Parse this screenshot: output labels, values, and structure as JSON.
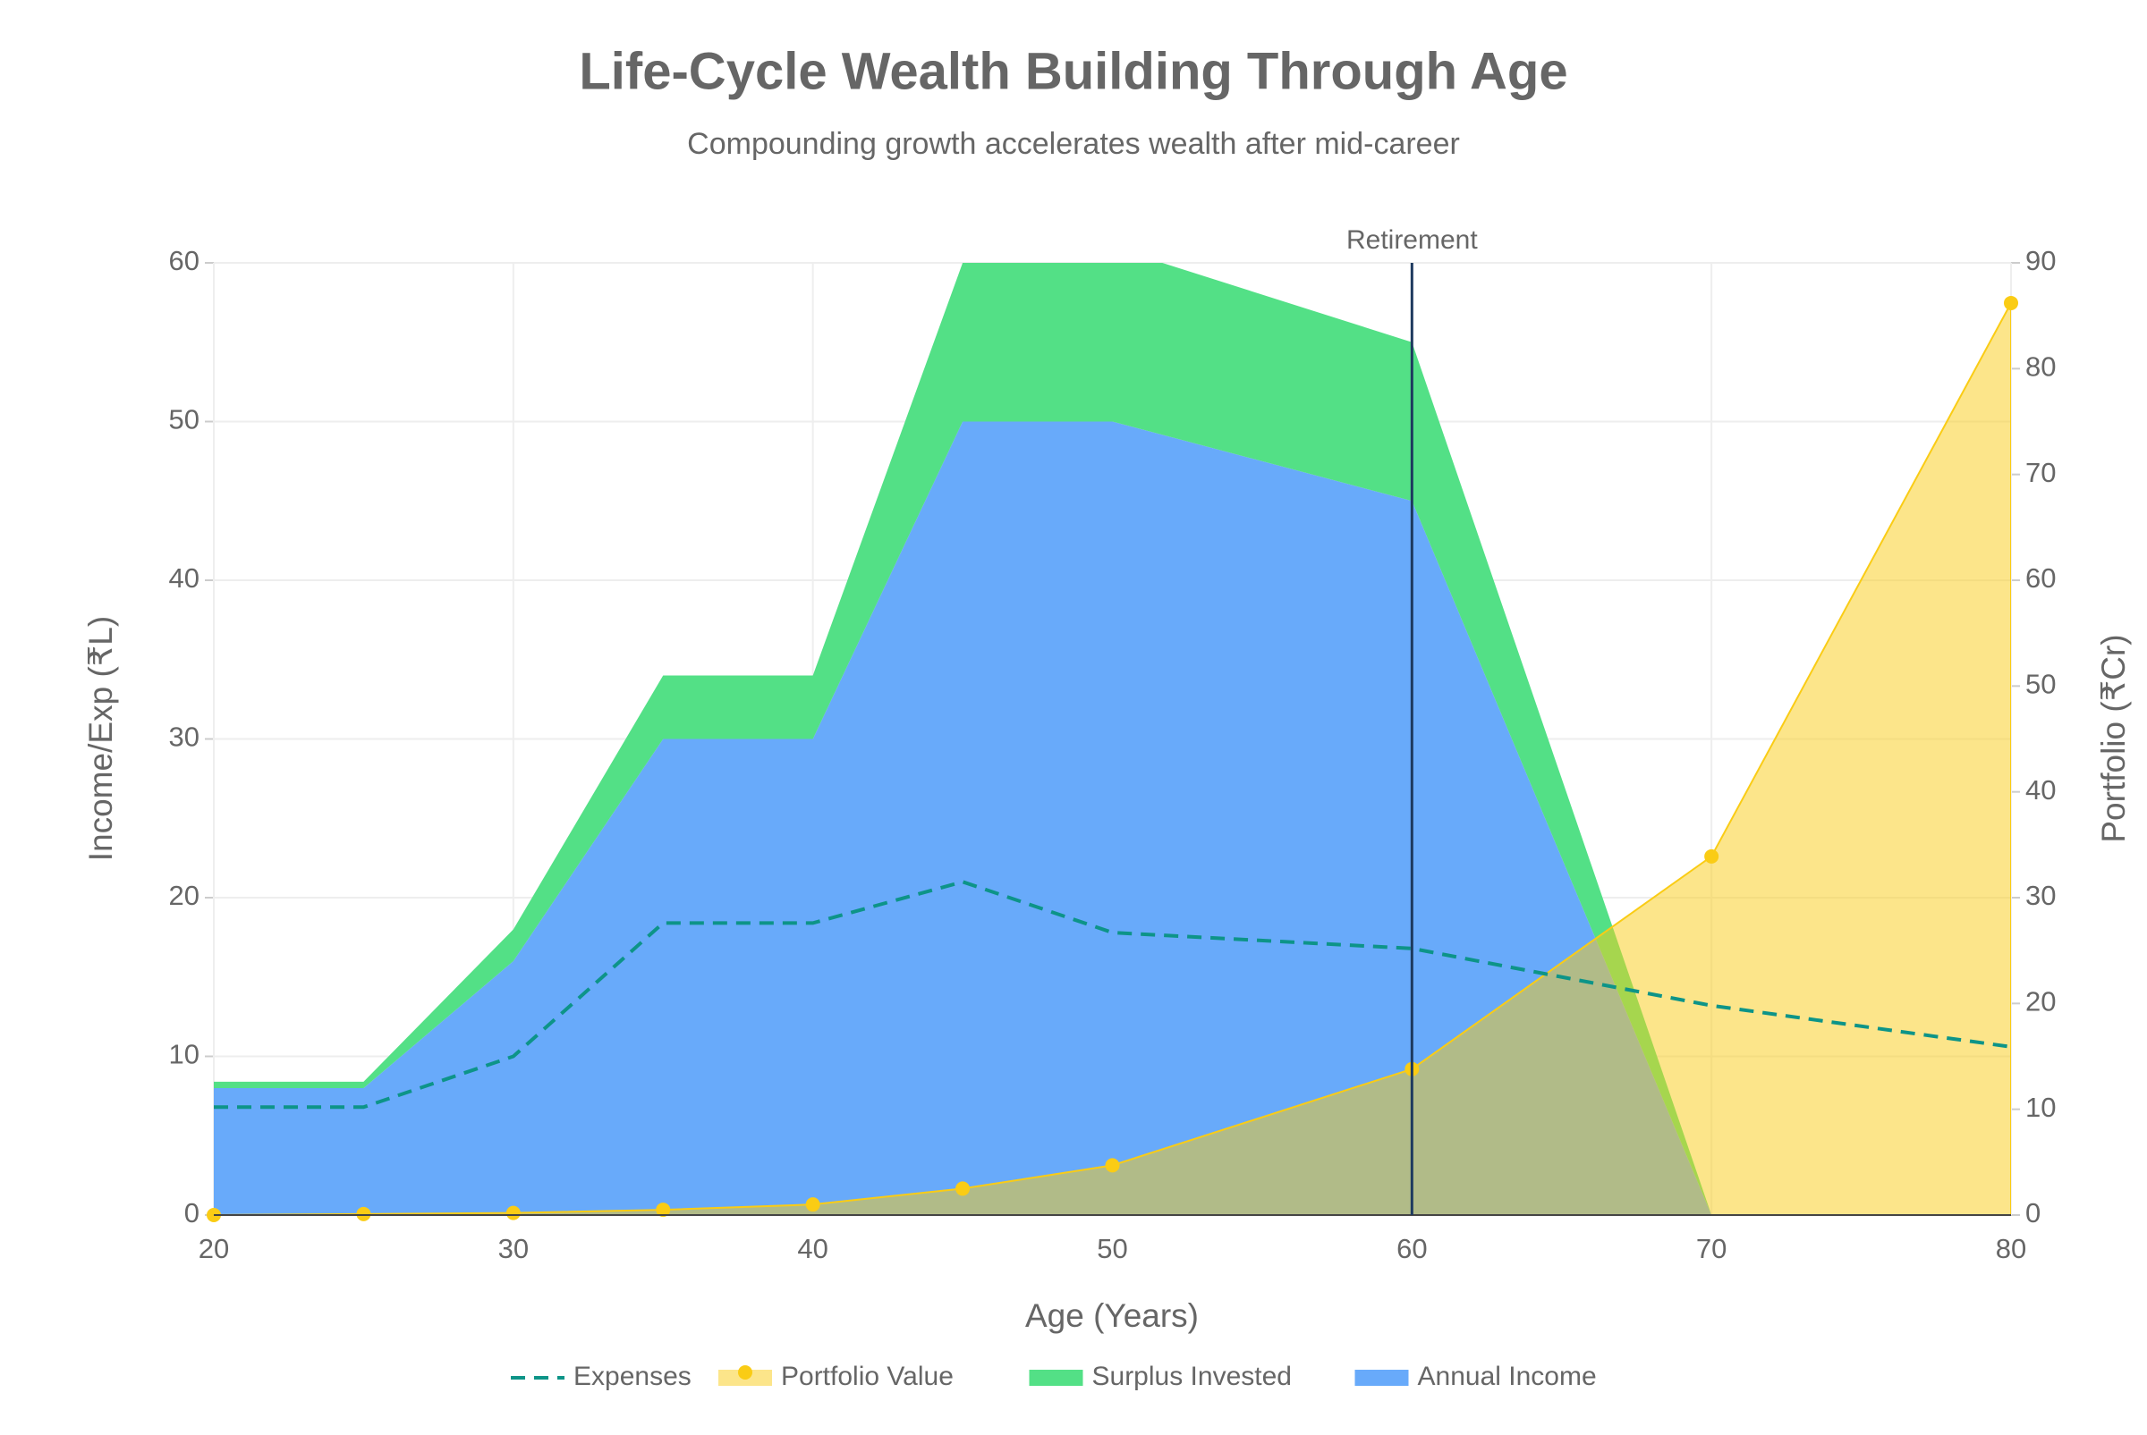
{
  "chart_data": {
    "type": "area",
    "title": "Life-Cycle Wealth Building Through Age",
    "subtitle": "Compounding growth accelerates wealth after mid-career",
    "x_label": "Age (Years)",
    "y_label": "Income/Exp (₹L)",
    "y2_label": "Portfolio (₹Cr)",
    "x": [
      20,
      25,
      30,
      35,
      40,
      45,
      50,
      60,
      70,
      80
    ],
    "series": [
      {
        "name": "Expenses",
        "type": "line",
        "dash": true,
        "color": "#0d9488",
        "values": [
          6.8,
          6.8,
          10,
          18.4,
          18.4,
          21,
          17.8,
          16.8,
          13.2,
          10.6
        ]
      },
      {
        "name": "Portfolio Value",
        "type": "area",
        "axis": "y2",
        "markers": true,
        "color": "#facc15",
        "values": [
          0,
          0.1,
          0.2,
          0.5,
          1.0,
          2.5,
          4.7,
          13.8,
          33.9,
          86.2
        ]
      },
      {
        "name": "Surplus Invested",
        "type": "area",
        "stacked": true,
        "color": "#4ade80",
        "values": [
          0.4,
          0.4,
          2,
          4,
          4,
          10,
          11,
          10,
          0,
          0
        ]
      },
      {
        "name": "Annual Income",
        "type": "area",
        "stacked": true,
        "color": "#60a5fa",
        "values": [
          8,
          8,
          16,
          30,
          30,
          50,
          50,
          45,
          0,
          0
        ]
      }
    ],
    "xlim": [
      20,
      80
    ],
    "xticks": [
      20,
      30,
      40,
      50,
      60,
      70,
      80
    ],
    "ylim": [
      0,
      60
    ],
    "yticks": [
      0,
      10,
      20,
      30,
      40,
      50,
      60
    ],
    "y2lim": [
      0,
      90
    ],
    "y2ticks": [
      0,
      10,
      20,
      30,
      40,
      50,
      60,
      70,
      80,
      90
    ],
    "grid": true,
    "annotations": [
      {
        "x": 60,
        "text": "Retirement"
      }
    ],
    "legend": "bottom"
  }
}
